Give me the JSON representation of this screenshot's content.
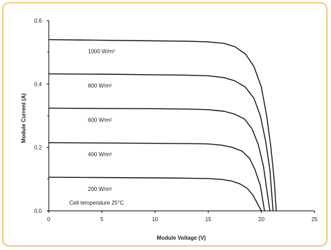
{
  "chart_data": {
    "type": "line",
    "xlabel": "Module Voltage (V)",
    "ylabel": "Module Current (A)",
    "xlim": [
      0,
      25
    ],
    "ylim": [
      0,
      0.6
    ],
    "xticks": [
      0,
      5,
      10,
      15,
      20,
      25
    ],
    "yticks": [
      0.0,
      0.2,
      0.4,
      0.6
    ],
    "ytick_labels": [
      "0.0",
      "0.2",
      "0.4",
      "0.6"
    ],
    "grid": false,
    "annotation": "Cell temperature 25°C",
    "series": [
      {
        "name": "1000 W/m²",
        "points": [
          [
            0,
            0.54
          ],
          [
            5,
            0.538
          ],
          [
            10,
            0.536
          ],
          [
            13,
            0.535
          ],
          [
            15,
            0.533
          ],
          [
            16.5,
            0.528
          ],
          [
            17.5,
            0.518
          ],
          [
            18.5,
            0.495
          ],
          [
            19.3,
            0.455
          ],
          [
            20,
            0.39
          ],
          [
            20.5,
            0.3
          ],
          [
            20.9,
            0.2
          ],
          [
            21.2,
            0.1
          ],
          [
            21.4,
            0.0
          ]
        ]
      },
      {
        "name": "800 W/m²",
        "points": [
          [
            0,
            0.432
          ],
          [
            5,
            0.431
          ],
          [
            10,
            0.429
          ],
          [
            13,
            0.428
          ],
          [
            15,
            0.426
          ],
          [
            16.5,
            0.42
          ],
          [
            17.5,
            0.41
          ],
          [
            18.5,
            0.39
          ],
          [
            19.3,
            0.355
          ],
          [
            19.9,
            0.3
          ],
          [
            20.4,
            0.22
          ],
          [
            20.8,
            0.13
          ],
          [
            21.1,
            0.0
          ]
        ]
      },
      {
        "name": "600 W/m²",
        "points": [
          [
            0,
            0.324
          ],
          [
            5,
            0.323
          ],
          [
            10,
            0.322
          ],
          [
            13,
            0.321
          ],
          [
            15,
            0.319
          ],
          [
            16.5,
            0.314
          ],
          [
            17.5,
            0.305
          ],
          [
            18.4,
            0.29
          ],
          [
            19.1,
            0.26
          ],
          [
            19.7,
            0.21
          ],
          [
            20.2,
            0.14
          ],
          [
            20.5,
            0.07
          ],
          [
            20.8,
            0.0
          ]
        ]
      },
      {
        "name": "400 W/m²",
        "points": [
          [
            0,
            0.215
          ],
          [
            5,
            0.214
          ],
          [
            10,
            0.213
          ],
          [
            13,
            0.212
          ],
          [
            15,
            0.211
          ],
          [
            16.3,
            0.207
          ],
          [
            17.3,
            0.2
          ],
          [
            18.2,
            0.188
          ],
          [
            18.9,
            0.165
          ],
          [
            19.4,
            0.13
          ],
          [
            19.9,
            0.08
          ],
          [
            20.3,
            0.0
          ]
        ]
      },
      {
        "name": "200 W/m²",
        "points": [
          [
            0,
            0.106
          ],
          [
            5,
            0.105
          ],
          [
            10,
            0.104
          ],
          [
            13,
            0.103
          ],
          [
            15,
            0.102
          ],
          [
            16.3,
            0.099
          ],
          [
            17.2,
            0.094
          ],
          [
            18.0,
            0.085
          ],
          [
            18.7,
            0.07
          ],
          [
            19.2,
            0.05
          ],
          [
            19.6,
            0.025
          ],
          [
            20.0,
            0.0
          ]
        ]
      }
    ]
  }
}
